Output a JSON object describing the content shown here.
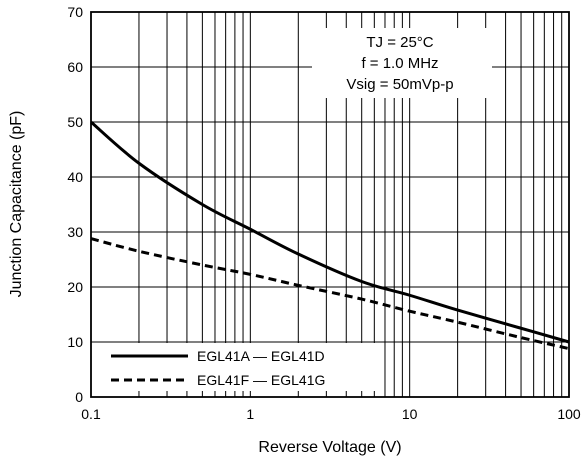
{
  "chart_data": {
    "type": "line",
    "title": "",
    "xlabel": "Reverse Voltage (V)",
    "ylabel": "Junction Capacitance (pF)",
    "xscale": "log",
    "xlim": [
      0.1,
      100
    ],
    "ylim": [
      0,
      70
    ],
    "grid": true,
    "x_ticks": [
      "0.1",
      "1",
      "10",
      "100"
    ],
    "y_ticks": [
      "0",
      "10",
      "20",
      "30",
      "40",
      "50",
      "60",
      "70"
    ],
    "conditions": [
      "TJ = 25°C",
      "f = 1.0 MHz",
      "Vsig = 50mVp-p"
    ],
    "legend_position": "bottom-left",
    "series": [
      {
        "name": "EGL41A — EGL41D",
        "style": "solid",
        "color": "#000000",
        "x": [
          0.1,
          0.2,
          0.5,
          1,
          2,
          5,
          10,
          20,
          50,
          100
        ],
        "y": [
          50,
          42.5,
          35,
          30.5,
          26,
          21,
          18.5,
          15.8,
          12.5,
          10
        ]
      },
      {
        "name": "EGL41F — EGL41G",
        "style": "dashed",
        "color": "#000000",
        "x": [
          0.1,
          0.2,
          0.5,
          1,
          2,
          5,
          10,
          20,
          50,
          100
        ],
        "y": [
          28.8,
          26.5,
          24,
          22.3,
          20.3,
          17.8,
          15.6,
          13.6,
          10.8,
          8.8
        ]
      }
    ]
  }
}
